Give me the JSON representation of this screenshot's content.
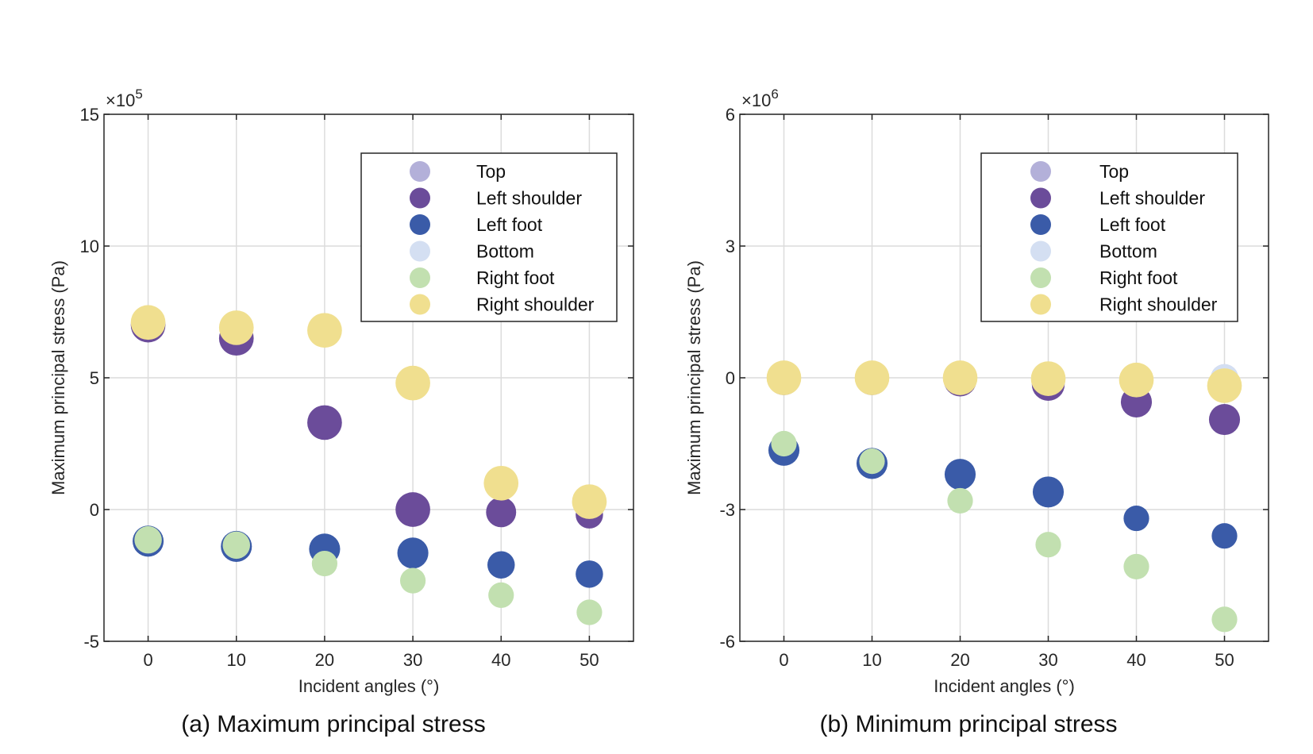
{
  "colors": {
    "Top": "#b3b0d9",
    "Left shoulder": "#6b4c9a",
    "Left foot": "#3a5ba8",
    "Bottom": "#d4dff2",
    "Right foot": "#c2e0b0",
    "Right shoulder": "#f0df8f"
  },
  "chart_data": [
    {
      "type": "scatter",
      "caption": "(a) Maximum principal stress",
      "xlabel": "Incident angles (°)",
      "ylabel": "Maximum principal stress (Pa)",
      "multiplier_base": "×10",
      "multiplier_exp": "5",
      "x": [
        0,
        10,
        20,
        30,
        40,
        50
      ],
      "xticks": [
        0,
        10,
        20,
        30,
        40,
        50
      ],
      "xtick_labels": [
        "0",
        "10",
        "20",
        "30",
        "40",
        "50"
      ],
      "xlim": [
        -5,
        55
      ],
      "yticks": [
        -5,
        0,
        5,
        10,
        15
      ],
      "ytick_labels": [
        "-5",
        "0",
        "5",
        "10",
        "15"
      ],
      "ylim": [
        -5,
        15
      ],
      "grid": true,
      "legend_position": "top-right",
      "series": [
        {
          "name": "Top",
          "values": [
            0,
            0,
            0,
            0,
            0,
            0
          ],
          "sizes": [
            0,
            0,
            0,
            0,
            0,
            0
          ],
          "visible": false
        },
        {
          "name": "Left shoulder",
          "values": [
            7.0,
            6.5,
            3.3,
            0.0,
            -0.1,
            -0.2
          ],
          "sizes": [
            38,
            38,
            38,
            38,
            33,
            30
          ]
        },
        {
          "name": "Left foot",
          "values": [
            -1.2,
            -1.4,
            -1.5,
            -1.65,
            -2.1,
            -2.45
          ],
          "sizes": [
            34,
            34,
            34,
            34,
            30,
            30
          ]
        },
        {
          "name": "Bottom",
          "values": [
            0,
            0,
            0,
            0,
            0,
            0
          ],
          "sizes": [
            0,
            0,
            0,
            0,
            0,
            0
          ],
          "visible": false
        },
        {
          "name": "Right foot",
          "values": [
            -1.15,
            -1.35,
            -2.05,
            -2.7,
            -3.25,
            -3.9
          ],
          "sizes": [
            30,
            30,
            28,
            28,
            28,
            28
          ]
        },
        {
          "name": "Right shoulder",
          "values": [
            7.1,
            6.9,
            6.8,
            4.8,
            1.0,
            0.3
          ],
          "sizes": [
            38,
            38,
            38,
            38,
            38,
            38
          ]
        }
      ]
    },
    {
      "type": "scatter",
      "caption": "(b) Minimum principal stress",
      "xlabel": "Incident angles (°)",
      "ylabel": "Maximum principal stress (Pa)",
      "multiplier_base": "×10",
      "multiplier_exp": "6",
      "x": [
        0,
        10,
        20,
        30,
        40,
        50
      ],
      "xticks": [
        0,
        10,
        20,
        30,
        40,
        50
      ],
      "xtick_labels": [
        "0",
        "10",
        "20",
        "30",
        "40",
        "50"
      ],
      "xlim": [
        -5,
        55
      ],
      "yticks": [
        -6,
        -3,
        0,
        3,
        6
      ],
      "ytick_labels": [
        "-6",
        "-3",
        "0",
        "3",
        "6"
      ],
      "ylim": [
        -6,
        6
      ],
      "grid": true,
      "legend_position": "top-right",
      "series": [
        {
          "name": "Top",
          "values": [
            0,
            0,
            0,
            0,
            0,
            0
          ],
          "sizes": [
            30,
            30,
            30,
            30,
            30,
            30
          ]
        },
        {
          "name": "Left shoulder",
          "values": [
            -0.02,
            -0.02,
            -0.05,
            -0.15,
            -0.55,
            -0.95
          ],
          "sizes": [
            36,
            36,
            36,
            36,
            34,
            34
          ]
        },
        {
          "name": "Left foot",
          "values": [
            -1.65,
            -1.95,
            -2.2,
            -2.6,
            -3.2,
            -3.6
          ],
          "sizes": [
            34,
            34,
            34,
            34,
            28,
            28
          ]
        },
        {
          "name": "Bottom",
          "values": [
            0,
            0,
            0,
            0,
            0,
            0
          ],
          "sizes": [
            30,
            30,
            30,
            30,
            30,
            30
          ]
        },
        {
          "name": "Right foot",
          "values": [
            -1.5,
            -1.9,
            -2.8,
            -3.8,
            -4.3,
            -5.5
          ],
          "sizes": [
            28,
            28,
            28,
            28,
            28,
            28
          ]
        },
        {
          "name": "Right shoulder",
          "values": [
            0.0,
            0.0,
            0.0,
            -0.02,
            -0.05,
            -0.18
          ],
          "sizes": [
            38,
            38,
            38,
            38,
            38,
            38
          ]
        }
      ]
    }
  ]
}
